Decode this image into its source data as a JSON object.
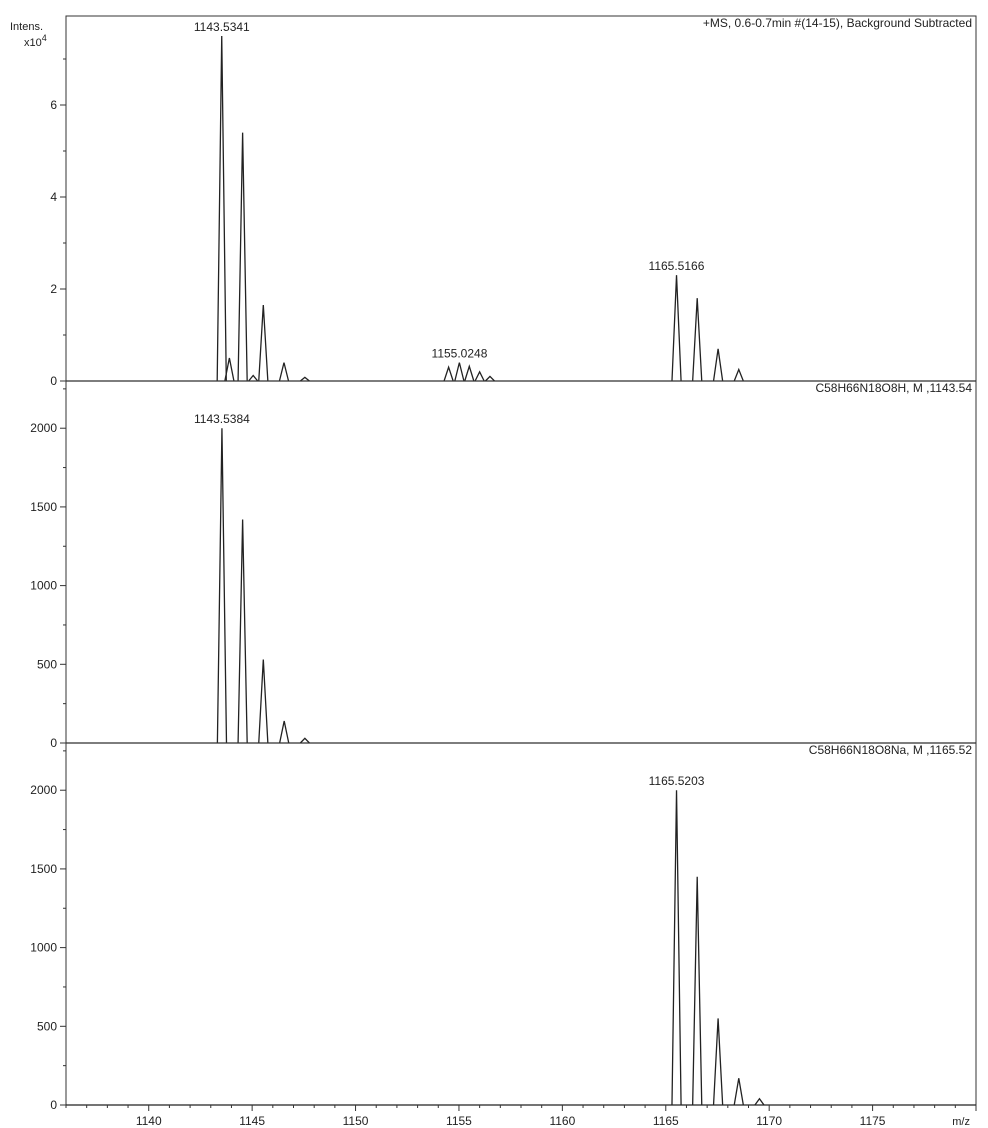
{
  "chart_data": {
    "type": "line",
    "xlabel": "m/z",
    "xlim": [
      1136,
      1180
    ],
    "x_ticks": [
      1140,
      1145,
      1150,
      1155,
      1160,
      1165,
      1170,
      1175
    ],
    "x_tick_labels": [
      "1140",
      "1145",
      "1150",
      "1155",
      "1160",
      "1165",
      "1170",
      "1175"
    ],
    "panels": [
      {
        "header": "+MS, 0.6-0.7min #(14-15), Background Subtracted",
        "ylabel_line1": "Intens.",
        "ylabel_line2": "x10",
        "ylabel_exp": "4",
        "ylim": [
          0,
          7.5
        ],
        "y_ticks": [
          0,
          2,
          4,
          6
        ],
        "y_tick_labels": [
          "0",
          "2",
          "4",
          "6"
        ],
        "peaks": [
          {
            "x": 1143.53,
            "y": 7.5
          },
          {
            "x": 1143.9,
            "y": 0.5
          },
          {
            "x": 1144.54,
            "y": 5.4
          },
          {
            "x": 1145.05,
            "y": 0.12
          },
          {
            "x": 1145.54,
            "y": 1.65
          },
          {
            "x": 1146.54,
            "y": 0.4
          },
          {
            "x": 1147.55,
            "y": 0.08
          },
          {
            "x": 1154.5,
            "y": 0.3
          },
          {
            "x": 1155.02,
            "y": 0.4
          },
          {
            "x": 1155.5,
            "y": 0.32
          },
          {
            "x": 1156.0,
            "y": 0.2
          },
          {
            "x": 1156.5,
            "y": 0.1
          },
          {
            "x": 1165.52,
            "y": 2.3
          },
          {
            "x": 1166.52,
            "y": 1.8
          },
          {
            "x": 1167.53,
            "y": 0.7
          },
          {
            "x": 1168.53,
            "y": 0.25
          }
        ],
        "annotations": [
          {
            "x": 1143.5341,
            "y": 7.5,
            "label": "1143.5341"
          },
          {
            "x": 1155.0248,
            "y": 0.4,
            "label": "1155.0248"
          },
          {
            "x": 1165.5166,
            "y": 2.3,
            "label": "1165.5166"
          }
        ]
      },
      {
        "header": "C58H66N18O8H, M ,1143.54",
        "ylim": [
          0,
          2300
        ],
        "y_ticks": [
          0,
          500,
          1000,
          1500,
          2000
        ],
        "y_tick_labels": [
          "0",
          "500",
          "1000",
          "1500",
          "2000"
        ],
        "peaks": [
          {
            "x": 1143.54,
            "y": 2000
          },
          {
            "x": 1144.54,
            "y": 1420
          },
          {
            "x": 1145.54,
            "y": 530
          },
          {
            "x": 1146.55,
            "y": 140
          },
          {
            "x": 1147.55,
            "y": 30
          }
        ],
        "annotations": [
          {
            "x": 1143.5384,
            "y": 2000,
            "label": "1143.5384"
          }
        ]
      },
      {
        "header": "C58H66N18O8Na, M ,1165.52",
        "ylim": [
          0,
          2300
        ],
        "y_ticks": [
          0,
          500,
          1000,
          1500,
          2000
        ],
        "y_tick_labels": [
          "0",
          "500",
          "1000",
          "1500",
          "2000"
        ],
        "peaks": [
          {
            "x": 1165.52,
            "y": 2000
          },
          {
            "x": 1166.52,
            "y": 1450
          },
          {
            "x": 1167.53,
            "y": 550
          },
          {
            "x": 1168.53,
            "y": 170
          },
          {
            "x": 1169.53,
            "y": 40
          }
        ],
        "annotations": [
          {
            "x": 1165.5203,
            "y": 2000,
            "label": "1165.5203"
          }
        ]
      }
    ]
  }
}
